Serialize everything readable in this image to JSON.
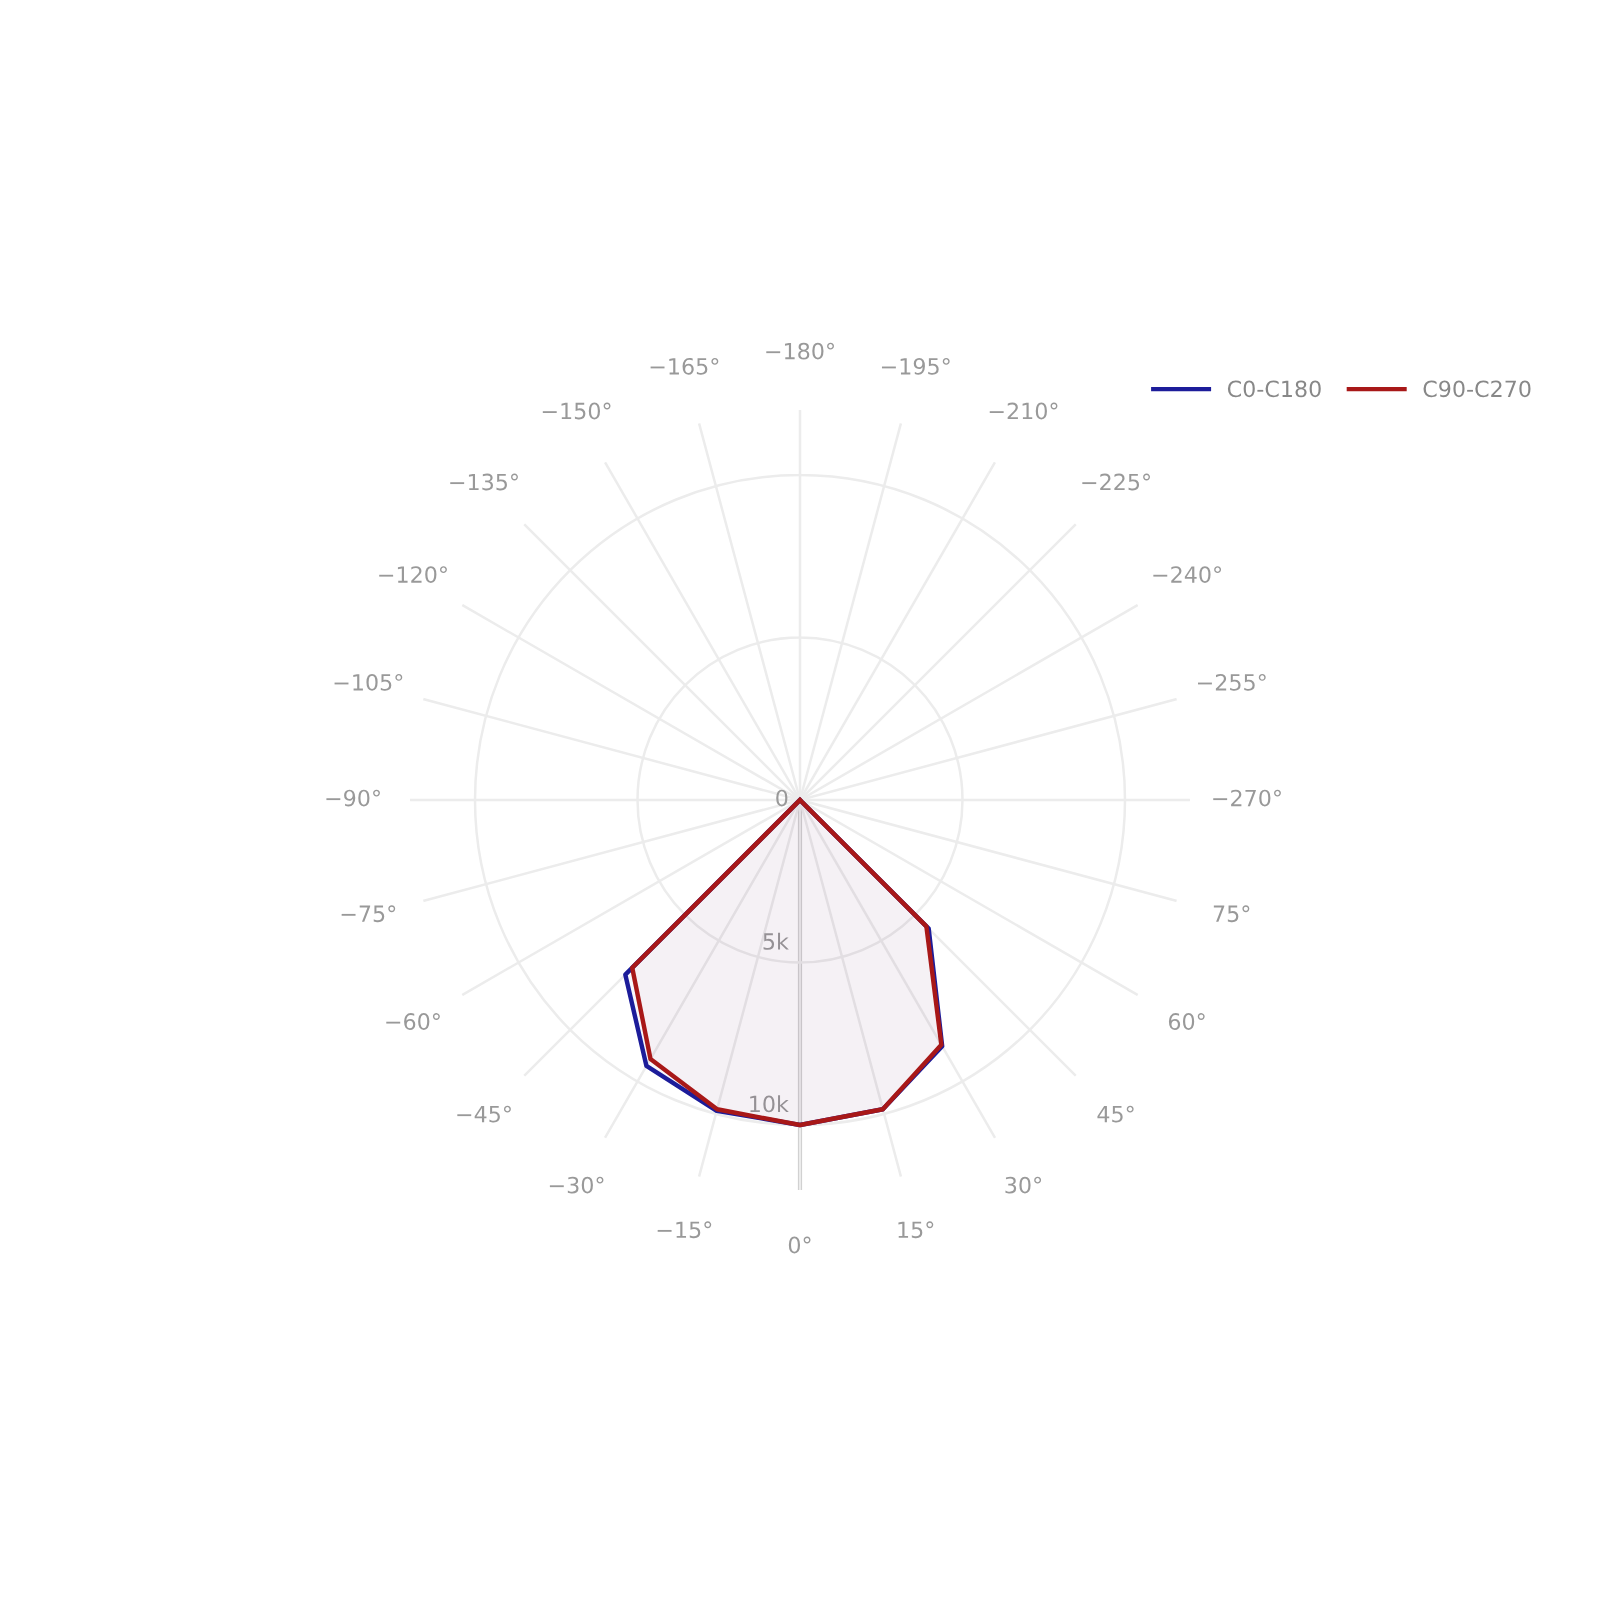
{
  "chart_data": {
    "type": "radar",
    "categories": [
      "−180°",
      "−195°",
      "−210°",
      "−225°",
      "−240°",
      "−255°",
      "−270°",
      "75°",
      "60°",
      "45°",
      "30°",
      "15°",
      "0°",
      "−15°",
      "−30°",
      "−45°",
      "−60°",
      "−75°",
      "−90°",
      "−105°",
      "−120°",
      "−135°",
      "−150°",
      "−165°"
    ],
    "series": [
      {
        "name": "C0-C180",
        "color": "#1c1c9a",
        "values": [
          0,
          0,
          0,
          0,
          0,
          0,
          0,
          0,
          0,
          5600,
          8750,
          9850,
          10000,
          9900,
          9450,
          7600,
          0,
          0,
          0,
          0,
          0,
          0,
          0,
          0
        ]
      },
      {
        "name": "C90-C270",
        "color": "#a81818",
        "values": [
          0,
          0,
          0,
          0,
          0,
          0,
          0,
          0,
          0,
          5500,
          8700,
          9850,
          10000,
          9850,
          9200,
          7300,
          0,
          0,
          0,
          0,
          0,
          0,
          0,
          0
        ]
      }
    ],
    "ylim": [
      0,
      12000
    ],
    "yticks": [
      {
        "value": 0,
        "label": "0"
      },
      {
        "value": 5000,
        "label": "5k"
      },
      {
        "value": 10000,
        "label": "10k"
      }
    ],
    "grid": true,
    "legend": "top right",
    "marker": "none",
    "line_style": "solid"
  }
}
